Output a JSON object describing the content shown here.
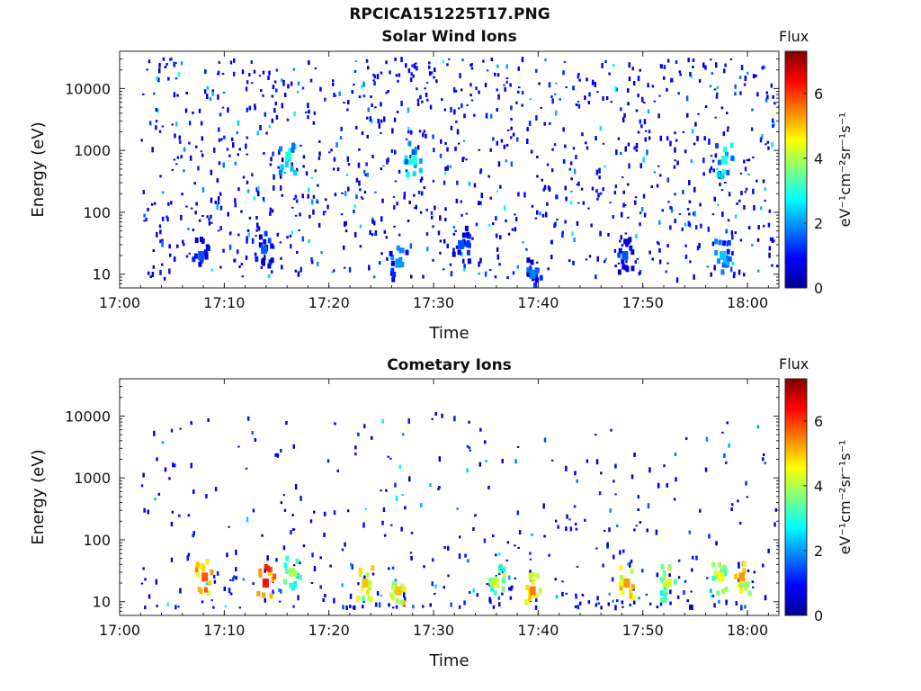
{
  "figure": {
    "title": "RPCICA151225T17.PNG"
  },
  "colors": {
    "colormap": [
      "#00008f",
      "#0000ff",
      "#0080ff",
      "#00ffff",
      "#80ff80",
      "#ffff00",
      "#ff8000",
      "#ff0000",
      "#800000"
    ],
    "background": "#ffffff"
  },
  "chart_data": [
    {
      "type": "heatmap",
      "title": "Solar Wind Ions",
      "xlabel": "Time",
      "ylabel": "Energy (eV)",
      "x_ticks": [
        "17:00",
        "17:10",
        "17:20",
        "17:30",
        "17:40",
        "17:50",
        "18:00"
      ],
      "xlim": [
        "17:00",
        "18:03"
      ],
      "y_scale": "log",
      "y_ticks": [
        "10",
        "100",
        "1000",
        "10000"
      ],
      "ylim": [
        6,
        40000
      ],
      "colorbar": {
        "label": "Flux",
        "unit": "eV⁻¹cm⁻²sr⁻¹s⁻¹",
        "ticks": [
          "0",
          "2",
          "4",
          "6"
        ],
        "range": [
          0,
          7.3
        ]
      },
      "grid": false,
      "data_range": [
        "17:02",
        "18:03"
      ],
      "description_points": [
        {
          "time": "17:07:40",
          "energy_eV": 20,
          "flux": 1.5
        },
        {
          "time": "17:13:40",
          "energy_eV": 25,
          "flux": 1.6
        },
        {
          "time": "17:16:00",
          "energy_eV": 800,
          "flux": 3.0
        },
        {
          "time": "17:26:30",
          "energy_eV": 15,
          "flux": 2.0
        },
        {
          "time": "17:28:00",
          "energy_eV": 700,
          "flux": 3.0
        },
        {
          "time": "17:32:30",
          "energy_eV": 30,
          "flux": 1.5
        },
        {
          "time": "17:39:20",
          "energy_eV": 10,
          "flux": 1.8
        },
        {
          "time": "17:48:10",
          "energy_eV": 20,
          "flux": 1.5
        },
        {
          "time": "17:57:30",
          "energy_eV": 20,
          "flux": 2.4
        },
        {
          "time": "17:57:40",
          "energy_eV": 700,
          "flux": 3.0
        }
      ]
    },
    {
      "type": "heatmap",
      "title": "Cometary Ions",
      "xlabel": "Time",
      "ylabel": "Energy (eV)",
      "x_ticks": [
        "17:00",
        "17:10",
        "17:20",
        "17:30",
        "17:40",
        "17:50",
        "18:00"
      ],
      "xlim": [
        "17:00",
        "18:03"
      ],
      "y_scale": "log",
      "y_ticks": [
        "10",
        "100",
        "1000",
        "10000"
      ],
      "ylim": [
        6,
        40000
      ],
      "colorbar": {
        "label": "Flux",
        "unit": "eV⁻¹cm⁻²sr⁻¹s⁻¹",
        "ticks": [
          "0",
          "2",
          "4",
          "6"
        ],
        "range": [
          0,
          7.3
        ]
      },
      "grid": false,
      "data_range": [
        "17:02",
        "18:03"
      ],
      "description_points": [
        {
          "time": "17:08:00",
          "energy_eV": 25,
          "flux": 5.8
        },
        {
          "time": "17:13:50",
          "energy_eV": 20,
          "flux": 6.3
        },
        {
          "time": "17:16:20",
          "energy_eV": 30,
          "flux": 4.0
        },
        {
          "time": "17:23:20",
          "energy_eV": 20,
          "flux": 5.0
        },
        {
          "time": "17:26:30",
          "energy_eV": 15,
          "flux": 5.0
        },
        {
          "time": "17:35:50",
          "energy_eV": 20,
          "flux": 4.2
        },
        {
          "time": "17:39:20",
          "energy_eV": 15,
          "flux": 5.5
        },
        {
          "time": "17:48:20",
          "energy_eV": 20,
          "flux": 5.3
        },
        {
          "time": "17:52:20",
          "energy_eV": 20,
          "flux": 4.3
        },
        {
          "time": "17:57:20",
          "energy_eV": 25,
          "flux": 4.5
        },
        {
          "time": "17:59:20",
          "energy_eV": 25,
          "flux": 5.3
        }
      ]
    }
  ]
}
